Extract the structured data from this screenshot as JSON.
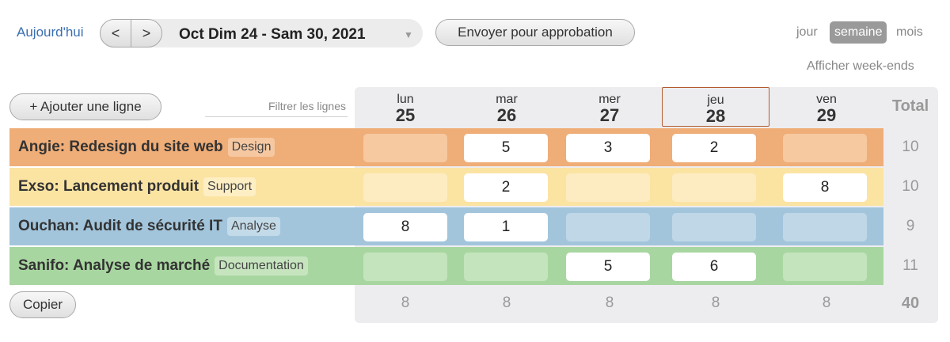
{
  "toolbar": {
    "today_label": "Aujourd'hui",
    "prev_label": "<",
    "next_label": ">",
    "date_range": "Oct Dim 24 - Sam 30, 2021",
    "submit_label": "Envoyer pour approbation"
  },
  "views": {
    "day": "jour",
    "week": "semaine",
    "month": "mois",
    "active": "semaine"
  },
  "weekends_label": "Afficher week-ends",
  "header": {
    "add_row_label": "+ Ajouter une ligne",
    "filter_placeholder": "Filtrer les lignes",
    "total_label": "Total",
    "days": [
      {
        "name": "lun",
        "num": "25",
        "today": false
      },
      {
        "name": "mar",
        "num": "26",
        "today": false
      },
      {
        "name": "mer",
        "num": "27",
        "today": false
      },
      {
        "name": "jeu",
        "num": "28",
        "today": true
      },
      {
        "name": "ven",
        "num": "29",
        "today": false
      }
    ]
  },
  "rows": [
    {
      "project": "Angie: Redesign du site web",
      "tag": "Design",
      "hours": [
        "",
        "5",
        "3",
        "2",
        ""
      ],
      "total": "10",
      "colors": {
        "row": "#efad77",
        "empty": "#f6c9a0",
        "tag": "#f6c8a2"
      }
    },
    {
      "project": "Exso: Lancement produit",
      "tag": "Support",
      "hours": [
        "",
        "2",
        "",
        "",
        "8"
      ],
      "total": "10",
      "colors": {
        "row": "#fbe3a2",
        "empty": "#fdecc1",
        "tag": "#fdeec4"
      }
    },
    {
      "project": "Ouchan: Audit de sécurité IT",
      "tag": "Analyse",
      "hours": [
        "8",
        "1",
        "",
        "",
        ""
      ],
      "total": "9",
      "colors": {
        "row": "#a2c5dc",
        "empty": "#bfd7e7",
        "tag": "#c3dae9"
      }
    },
    {
      "project": "Sanifo: Analyse de marché",
      "tag": "Documentation",
      "hours": [
        "",
        "",
        "5",
        "6",
        ""
      ],
      "total": "11",
      "colors": {
        "row": "#a8d6a0",
        "empty": "#c3e4bc",
        "tag": "#c6e5bf"
      }
    }
  ],
  "footer": {
    "copy_label": "Copier",
    "day_totals": [
      "8",
      "8",
      "8",
      "8",
      "8"
    ],
    "grand_total": "40"
  }
}
